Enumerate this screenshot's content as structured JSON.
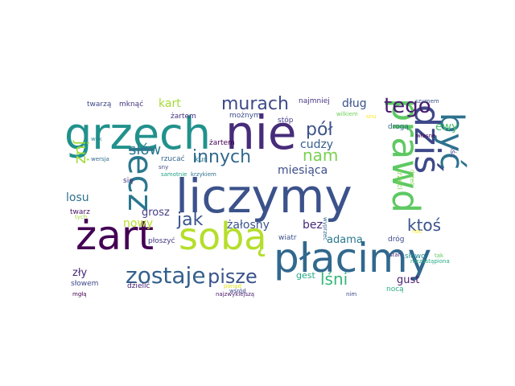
{
  "words": [
    {
      "text": "liczymy",
      "color": "#3b528b"
    },
    {
      "text": "płacimy",
      "color": "#31688e"
    },
    {
      "text": "grzech",
      "color": "#21918c"
    },
    {
      "text": "nie",
      "color": "#472c7a"
    },
    {
      "text": "żart",
      "color": "#440154"
    },
    {
      "text": "sobą",
      "color": "#b5de2b"
    },
    {
      "text": "prawd",
      "color": "#5ec962"
    },
    {
      "text": "dziś",
      "color": "#3e4989"
    },
    {
      "text": "być",
      "color": "#2c728e"
    },
    {
      "text": "lecz",
      "color": "#2a788e"
    },
    {
      "text": "zostaje",
      "color": "#35608d"
    },
    {
      "text": "pisze",
      "color": "#3a548c"
    },
    {
      "text": "tego",
      "color": "#481d6f"
    },
    {
      "text": "murach",
      "color": "#3e4a89"
    },
    {
      "text": "innych",
      "color": "#31688e"
    },
    {
      "text": "nam",
      "color": "#7ad151"
    },
    {
      "text": "pół",
      "color": "#3b528b"
    },
    {
      "text": "słów",
      "color": "#2a788e"
    },
    {
      "text": "już",
      "color": "#a0da39"
    },
    {
      "text": "jak",
      "color": "#39558c"
    },
    {
      "text": "ktoś",
      "color": "#3a538b"
    },
    {
      "text": "lśni",
      "color": "#35b779"
    },
    {
      "text": "kart",
      "color": "#a5db36"
    },
    {
      "text": "dług",
      "color": "#3b528b"
    },
    {
      "text": "ewy",
      "color": "#4ac16d"
    },
    {
      "text": "cudzy",
      "color": "#355f8d"
    },
    {
      "text": "miesiąca",
      "color": "#3d4d8a"
    },
    {
      "text": "żałosny",
      "color": "#3b528b"
    },
    {
      "text": "bez",
      "color": "#482878"
    },
    {
      "text": "nowy",
      "color": "#b8de29"
    },
    {
      "text": "losu",
      "color": "#2c728e"
    },
    {
      "text": "grosz",
      "color": "#433e85"
    },
    {
      "text": "adama",
      "color": "#2a788e"
    },
    {
      "text": "gest",
      "color": "#22a884"
    },
    {
      "text": "gust",
      "color": "#481f70"
    },
    {
      "text": "zły",
      "color": "#482677"
    },
    {
      "text": "twarz",
      "color": "#481467"
    },
    {
      "text": "słowem",
      "color": "#3e4989"
    },
    {
      "text": "dzielić",
      "color": "#482475"
    },
    {
      "text": "się",
      "color": "#46327e"
    },
    {
      "text": "najmniej",
      "color": "#463480"
    },
    {
      "text": "twarzą",
      "color": "#3f4889"
    },
    {
      "text": "mknąć",
      "color": "#46337f"
    },
    {
      "text": "żartem",
      "color": "#46337f"
    },
    {
      "text": "możnym",
      "color": "#3e4c8a"
    },
    {
      "text": "stóp",
      "color": "#424086"
    },
    {
      "text": "wilkiem",
      "color": "#6ece58"
    },
    {
      "text": "szumem",
      "color": "#3b528b"
    },
    {
      "text": "snu",
      "color": "#fde725"
    },
    {
      "text": "wilk",
      "color": "#26828e"
    },
    {
      "text": "żartem",
      "color": "#440154"
    },
    {
      "text": "drogą",
      "color": "#31688e"
    },
    {
      "text": "własne",
      "color": "#440154"
    },
    {
      "text": "iść",
      "color": "#3f4788"
    },
    {
      "text": "wersja",
      "color": "#2f6c8e"
    },
    {
      "text": "rzucać",
      "color": "#32658e"
    },
    {
      "text": "kur",
      "color": "#287c8e"
    },
    {
      "text": "sny",
      "color": "#3e4a89"
    },
    {
      "text": "samotnie",
      "color": "#20a386"
    },
    {
      "text": "krzykiem",
      "color": "#2d708e"
    },
    {
      "text": "trzeci",
      "color": "#7fd34e"
    },
    {
      "text": "drżeć",
      "color": "#7fd34e"
    },
    {
      "text": "noc",
      "color": "#fde725"
    },
    {
      "text": "tak",
      "color": "#5ec962"
    },
    {
      "text": "wyprzeć",
      "color": "#306a8e"
    },
    {
      "text": "dróg",
      "color": "#3e4989"
    },
    {
      "text": "płoszyć",
      "color": "#443a83"
    },
    {
      "text": "wiatr",
      "color": "#3b528b"
    },
    {
      "text": "słowo",
      "color": "#228d8d"
    },
    {
      "text": "stan",
      "color": "#46307e"
    },
    {
      "text": "niezastąpiona",
      "color": "#25ac82"
    },
    {
      "text": "tych",
      "color": "#9fda3a"
    },
    {
      "text": "mgłą",
      "color": "#440154"
    },
    {
      "text": "ponad",
      "color": "#dde318"
    },
    {
      "text": "wśród",
      "color": "#3e4a89"
    },
    {
      "text": "najzwyklejszą",
      "color": "#48186a"
    },
    {
      "text": "nim",
      "color": "#3f4788"
    },
    {
      "text": "nocą",
      "color": "#29af7f"
    },
    {
      "text": "",
      "color": "#fde725"
    },
    {
      "text": "",
      "color": "#481a6c"
    }
  ]
}
